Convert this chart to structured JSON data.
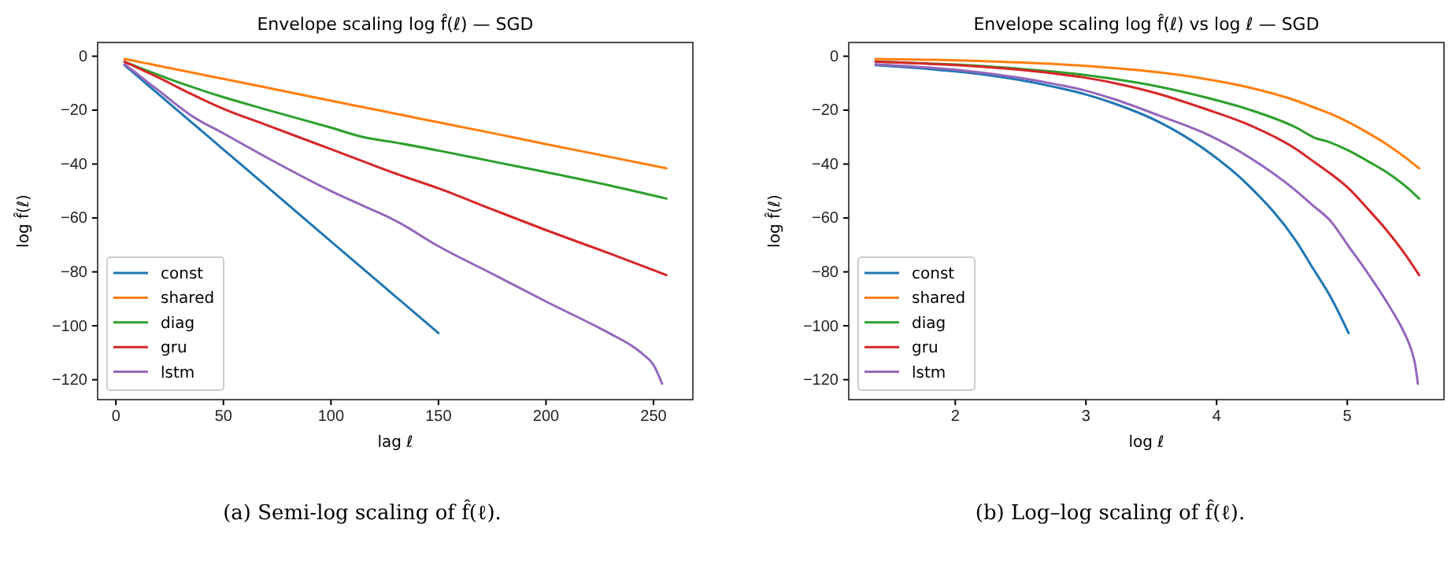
{
  "chart_data": [
    {
      "type": "line",
      "title": "Envelope scaling log f̂(ℓ) — SGD",
      "xlabel": "lag ℓ",
      "ylabel": "log f̂(ℓ)",
      "xlim": [
        -8.5,
        268.3
      ],
      "ylim": [
        -127.4,
        5.1
      ],
      "xticks": [
        0,
        50,
        100,
        150,
        200,
        250
      ],
      "yticks": [
        0,
        -20,
        -40,
        -60,
        -80,
        -100,
        -120
      ],
      "grid": false,
      "legend": "bottom left",
      "annotations": [
        "(a) Semi-log scaling of f̂(ℓ)."
      ],
      "series": [
        {
          "name": "const",
          "color": "#1f77b4",
          "x": [
            4,
            6,
            8,
            12,
            16,
            20,
            25,
            35,
            50,
            70,
            100,
            115,
            130,
            150
          ],
          "values": [
            -3.3,
            -4.7,
            -6.0,
            -8.7,
            -11.5,
            -14.2,
            -17.6,
            -24.4,
            -34.6,
            -48.2,
            -68.7,
            -78.9,
            -89.1,
            -102.7
          ]
        },
        {
          "name": "shared",
          "color": "#ff7f0e",
          "x": [
            4,
            6,
            8,
            12,
            16,
            20,
            25,
            35,
            50,
            70,
            100,
            115,
            130,
            150,
            175,
            200,
            230,
            256
          ],
          "values": [
            -1,
            -1.3,
            -1.6,
            -2.3,
            -2.9,
            -3.6,
            -4.4,
            -6,
            -8.4,
            -11.6,
            -16.5,
            -18.9,
            -21.3,
            -24.5,
            -28.5,
            -32.6,
            -37.4,
            -41.6
          ]
        },
        {
          "name": "diag",
          "color": "#2ca02c",
          "x": [
            4,
            6,
            8,
            12,
            16,
            20,
            25,
            35,
            50,
            70,
            100,
            115,
            130,
            150,
            175,
            200,
            230,
            256
          ],
          "values": [
            -2,
            -2.7,
            -3.3,
            -4.6,
            -5.8,
            -7,
            -8.5,
            -11.3,
            -15.2,
            -19.8,
            -26.5,
            -30,
            -32,
            -35,
            -39,
            -43,
            -48,
            -52.8
          ]
        },
        {
          "name": "gru",
          "color": "#d62728",
          "x": [
            4,
            6,
            8,
            12,
            16,
            20,
            25,
            35,
            50,
            70,
            100,
            115,
            130,
            150,
            175,
            200,
            230,
            256
          ],
          "values": [
            -2,
            -2.8,
            -3.5,
            -5,
            -6.5,
            -8,
            -10,
            -14,
            -19.5,
            -25.5,
            -34.5,
            -39,
            -43.5,
            -49,
            -56.8,
            -64.5,
            -73.3,
            -81.2
          ]
        },
        {
          "name": "lstm",
          "color": "#9467bd",
          "x": [
            4,
            6,
            8,
            12,
            16,
            20,
            25,
            35,
            50,
            70,
            100,
            115,
            130,
            150,
            175,
            200,
            230,
            240,
            245,
            250,
            254
          ],
          "values": [
            -3,
            -4.2,
            -5.4,
            -7.9,
            -10.4,
            -12.8,
            -16,
            -22,
            -28.6,
            -37.5,
            -50,
            -55.5,
            -61,
            -70.5,
            -80.7,
            -91,
            -103,
            -107.5,
            -110.5,
            -114.5,
            -121.5
          ]
        }
      ]
    },
    {
      "type": "line",
      "title": "Envelope scaling log f̂(ℓ) vs log ℓ — SGD",
      "xlabel": "log ℓ",
      "ylabel": "log f̂(ℓ)",
      "xlim": [
        1.185,
        5.74
      ],
      "ylim": [
        -127.4,
        5.1
      ],
      "xticks": [
        2,
        3,
        4,
        5
      ],
      "yticks": [
        0,
        -20,
        -40,
        -60,
        -80,
        -100,
        -120
      ],
      "grid": false,
      "legend": "bottom left",
      "annotations": [
        "(b) Log–log scaling of f̂(ℓ)."
      ],
      "series": [
        {
          "name": "const",
          "color": "#1f77b4",
          "x": [
            1.39,
            1.79,
            2.08,
            2.48,
            2.77,
            3.0,
            3.22,
            3.56,
            3.91,
            4.25,
            4.61,
            4.74,
            4.87,
            5.01
          ],
          "values": [
            -3.3,
            -4.7,
            -6.0,
            -8.7,
            -11.5,
            -14.2,
            -17.6,
            -24.4,
            -34.6,
            -48.2,
            -68.7,
            -78.9,
            -89.1,
            -102.7
          ]
        },
        {
          "name": "shared",
          "color": "#ff7f0e",
          "x": [
            1.39,
            1.79,
            2.08,
            2.48,
            2.77,
            3.0,
            3.22,
            3.56,
            3.91,
            4.25,
            4.61,
            4.74,
            4.87,
            5.01,
            5.16,
            5.3,
            5.44,
            5.55
          ],
          "values": [
            -1,
            -1.3,
            -1.6,
            -2.3,
            -2.9,
            -3.6,
            -4.4,
            -6,
            -8.4,
            -11.6,
            -16.5,
            -18.9,
            -21.3,
            -24.5,
            -28.5,
            -32.6,
            -37.4,
            -41.6
          ]
        },
        {
          "name": "diag",
          "color": "#2ca02c",
          "x": [
            1.39,
            1.79,
            2.08,
            2.48,
            2.77,
            3.0,
            3.22,
            3.56,
            3.91,
            4.25,
            4.61,
            4.74,
            4.87,
            5.01,
            5.16,
            5.3,
            5.44,
            5.55
          ],
          "values": [
            -2,
            -2.7,
            -3.3,
            -4.6,
            -5.8,
            -7,
            -8.5,
            -11.3,
            -15.2,
            -19.8,
            -26.5,
            -30,
            -32,
            -35,
            -39,
            -43,
            -48,
            -52.8
          ]
        },
        {
          "name": "gru",
          "color": "#d62728",
          "x": [
            1.39,
            1.79,
            2.08,
            2.48,
            2.77,
            3.0,
            3.22,
            3.56,
            3.91,
            4.25,
            4.61,
            4.74,
            4.87,
            5.01,
            5.16,
            5.3,
            5.44,
            5.55
          ],
          "values": [
            -2,
            -2.8,
            -3.5,
            -5,
            -6.5,
            -8,
            -10,
            -14,
            -19.5,
            -25.5,
            -34.5,
            -39,
            -43.5,
            -49,
            -56.8,
            -64.5,
            -73.3,
            -81.2
          ]
        },
        {
          "name": "lstm",
          "color": "#9467bd",
          "x": [
            1.39,
            1.79,
            2.08,
            2.48,
            2.77,
            3.0,
            3.22,
            3.56,
            3.91,
            4.25,
            4.61,
            4.74,
            4.87,
            5.01,
            5.16,
            5.3,
            5.44,
            5.48,
            5.5,
            5.52,
            5.54
          ],
          "values": [
            -3,
            -4.2,
            -5.4,
            -7.9,
            -10.4,
            -12.8,
            -16,
            -22,
            -28.6,
            -37.5,
            -50,
            -55.5,
            -61,
            -70.5,
            -80.7,
            -91,
            -103,
            -107.5,
            -110.5,
            -114.5,
            -121.5
          ]
        }
      ]
    }
  ]
}
